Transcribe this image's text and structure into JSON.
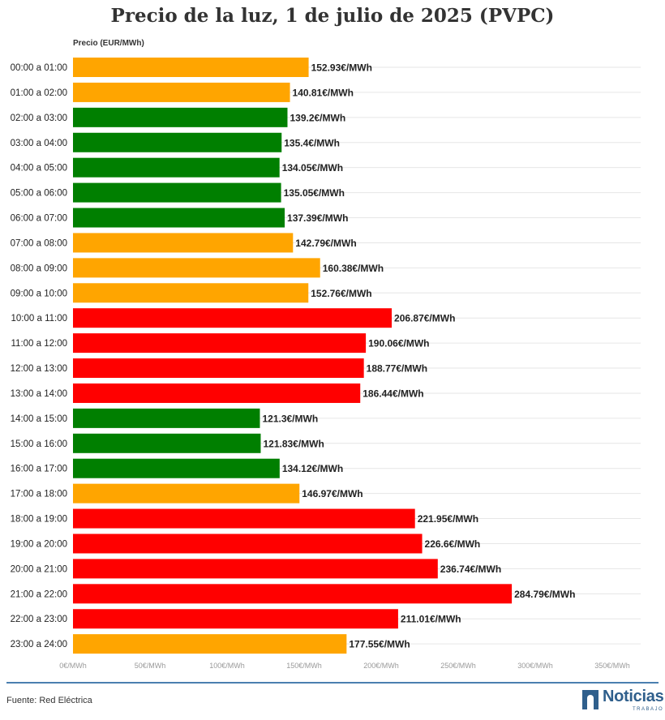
{
  "chart_data": {
    "type": "bar",
    "orientation": "horizontal",
    "title": "Precio de la luz, 1 de julio de 2025 (PVPC)",
    "xlabel": "Precio (EUR/MWh)",
    "ylabel": "",
    "xlim": [
      0,
      350
    ],
    "x_ticks": [
      "0€/MWh",
      "50€/MWh",
      "100€/MWh",
      "150€/MWh",
      "200€/MWh",
      "250€/MWh",
      "300€/MWh",
      "350€/MWh"
    ],
    "x_tick_values": [
      0,
      50,
      100,
      150,
      200,
      250,
      300,
      350
    ],
    "grid": true,
    "value_suffix": "€/MWh",
    "categories": [
      "00:00 a 01:00",
      "01:00 a 02:00",
      "02:00 a 03:00",
      "03:00 a 04:00",
      "04:00 a 05:00",
      "05:00 a 06:00",
      "06:00 a 07:00",
      "07:00 a 08:00",
      "08:00 a 09:00",
      "09:00 a 10:00",
      "10:00 a 11:00",
      "11:00 a 12:00",
      "12:00 a 13:00",
      "13:00 a 14:00",
      "14:00 a 15:00",
      "15:00 a 16:00",
      "16:00 a 17:00",
      "17:00 a 18:00",
      "18:00 a 19:00",
      "19:00 a 20:00",
      "20:00 a 21:00",
      "21:00 a 22:00",
      "22:00 a 23:00",
      "23:00 a 24:00"
    ],
    "values": [
      152.93,
      140.81,
      139.2,
      135.4,
      134.05,
      135.05,
      137.39,
      142.79,
      160.38,
      152.76,
      206.87,
      190.06,
      188.77,
      186.44,
      121.3,
      121.83,
      134.12,
      146.97,
      221.95,
      226.6,
      236.74,
      284.79,
      211.01,
      177.55
    ],
    "value_labels": [
      "152.93€/MWh",
      "140.81€/MWh",
      "139.2€/MWh",
      "135.4€/MWh",
      "134.05€/MWh",
      "135.05€/MWh",
      "137.39€/MWh",
      "142.79€/MWh",
      "160.38€/MWh",
      "152.76€/MWh",
      "206.87€/MWh",
      "190.06€/MWh",
      "188.77€/MWh",
      "186.44€/MWh",
      "121.3€/MWh",
      "121.83€/MWh",
      "134.12€/MWh",
      "146.97€/MWh",
      "221.95€/MWh",
      "226.6€/MWh",
      "236.74€/MWh",
      "284.79€/MWh",
      "211.01€/MWh",
      "177.55€/MWh"
    ],
    "bar_colors": [
      "#FFA500",
      "#FFA500",
      "#007F00",
      "#007F00",
      "#007F00",
      "#007F00",
      "#007F00",
      "#FFA500",
      "#FFA500",
      "#FFA500",
      "#FF0000",
      "#FF0000",
      "#FF0000",
      "#FF0000",
      "#007F00",
      "#007F00",
      "#007F00",
      "#FFA500",
      "#FF0000",
      "#FF0000",
      "#FF0000",
      "#FF0000",
      "#FF0000",
      "#FFA500"
    ]
  },
  "footer": {
    "source": "Fuente: Red Eléctrica",
    "logo_word": "Noticias",
    "logo_sub": "TRABAJO",
    "accent_color": "#2f5f8c"
  }
}
